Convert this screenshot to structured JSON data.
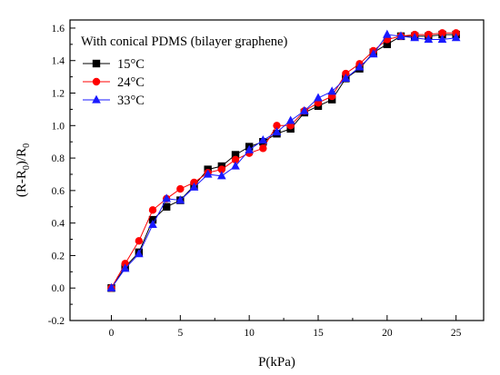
{
  "chart_data": {
    "type": "line",
    "title": "",
    "xlabel": "P(kPa)",
    "ylabel_parts": [
      "(R-R",
      "0",
      ")/R",
      "0"
    ],
    "xlim": [
      -3,
      27
    ],
    "ylim": [
      -0.2,
      1.65
    ],
    "xticks": [
      0,
      5,
      10,
      15,
      20,
      25
    ],
    "yticks": [
      -0.2,
      0.0,
      0.2,
      0.4,
      0.6,
      0.8,
      1.0,
      1.2,
      1.4,
      1.6
    ],
    "ytick_labels": [
      "-0.2",
      "0.0",
      "0.2",
      "0.4",
      "0.6",
      "0.8",
      "1.0",
      "1.2",
      "1.4",
      "1.6"
    ],
    "grid": false,
    "legend_title": "With conical PDMS (bilayer graphene)",
    "legend_position": "top-left",
    "series": [
      {
        "name": "15°C",
        "color": "#000000",
        "marker": "square",
        "x": [
          0,
          1,
          2,
          3,
          4,
          5,
          6,
          7,
          8,
          9,
          10,
          11,
          12,
          13,
          14,
          15,
          16,
          17,
          18,
          19,
          20,
          21,
          22,
          23,
          24,
          25
        ],
        "values": [
          0.0,
          0.13,
          0.22,
          0.42,
          0.5,
          0.54,
          0.63,
          0.73,
          0.75,
          0.82,
          0.87,
          0.9,
          0.95,
          0.98,
          1.08,
          1.12,
          1.16,
          1.29,
          1.35,
          1.45,
          1.5,
          1.55,
          1.55,
          1.55,
          1.56,
          1.56
        ]
      },
      {
        "name": "24°C",
        "color": "#ff0000",
        "marker": "circle",
        "x": [
          0,
          1,
          2,
          3,
          4,
          5,
          6,
          7,
          8,
          9,
          10,
          11,
          12,
          13,
          14,
          15,
          16,
          17,
          18,
          19,
          20,
          21,
          22,
          23,
          24,
          25
        ],
        "values": [
          0.0,
          0.15,
          0.29,
          0.48,
          0.55,
          0.61,
          0.65,
          0.71,
          0.73,
          0.79,
          0.83,
          0.86,
          1.0,
          1.0,
          1.09,
          1.14,
          1.18,
          1.32,
          1.38,
          1.46,
          1.53,
          1.55,
          1.56,
          1.56,
          1.57,
          1.57
        ]
      },
      {
        "name": "33°C",
        "color": "#1a1aff",
        "marker": "triangle",
        "x": [
          0,
          1,
          2,
          3,
          4,
          5,
          6,
          7,
          8,
          9,
          10,
          11,
          12,
          13,
          14,
          15,
          16,
          17,
          18,
          19,
          20,
          21,
          22,
          23,
          24,
          25
        ],
        "values": [
          0.0,
          0.12,
          0.21,
          0.39,
          0.55,
          0.54,
          0.62,
          0.7,
          0.69,
          0.75,
          0.85,
          0.91,
          0.96,
          1.03,
          1.09,
          1.17,
          1.21,
          1.29,
          1.36,
          1.44,
          1.56,
          1.55,
          1.54,
          1.53,
          1.53,
          1.54
        ]
      }
    ]
  }
}
